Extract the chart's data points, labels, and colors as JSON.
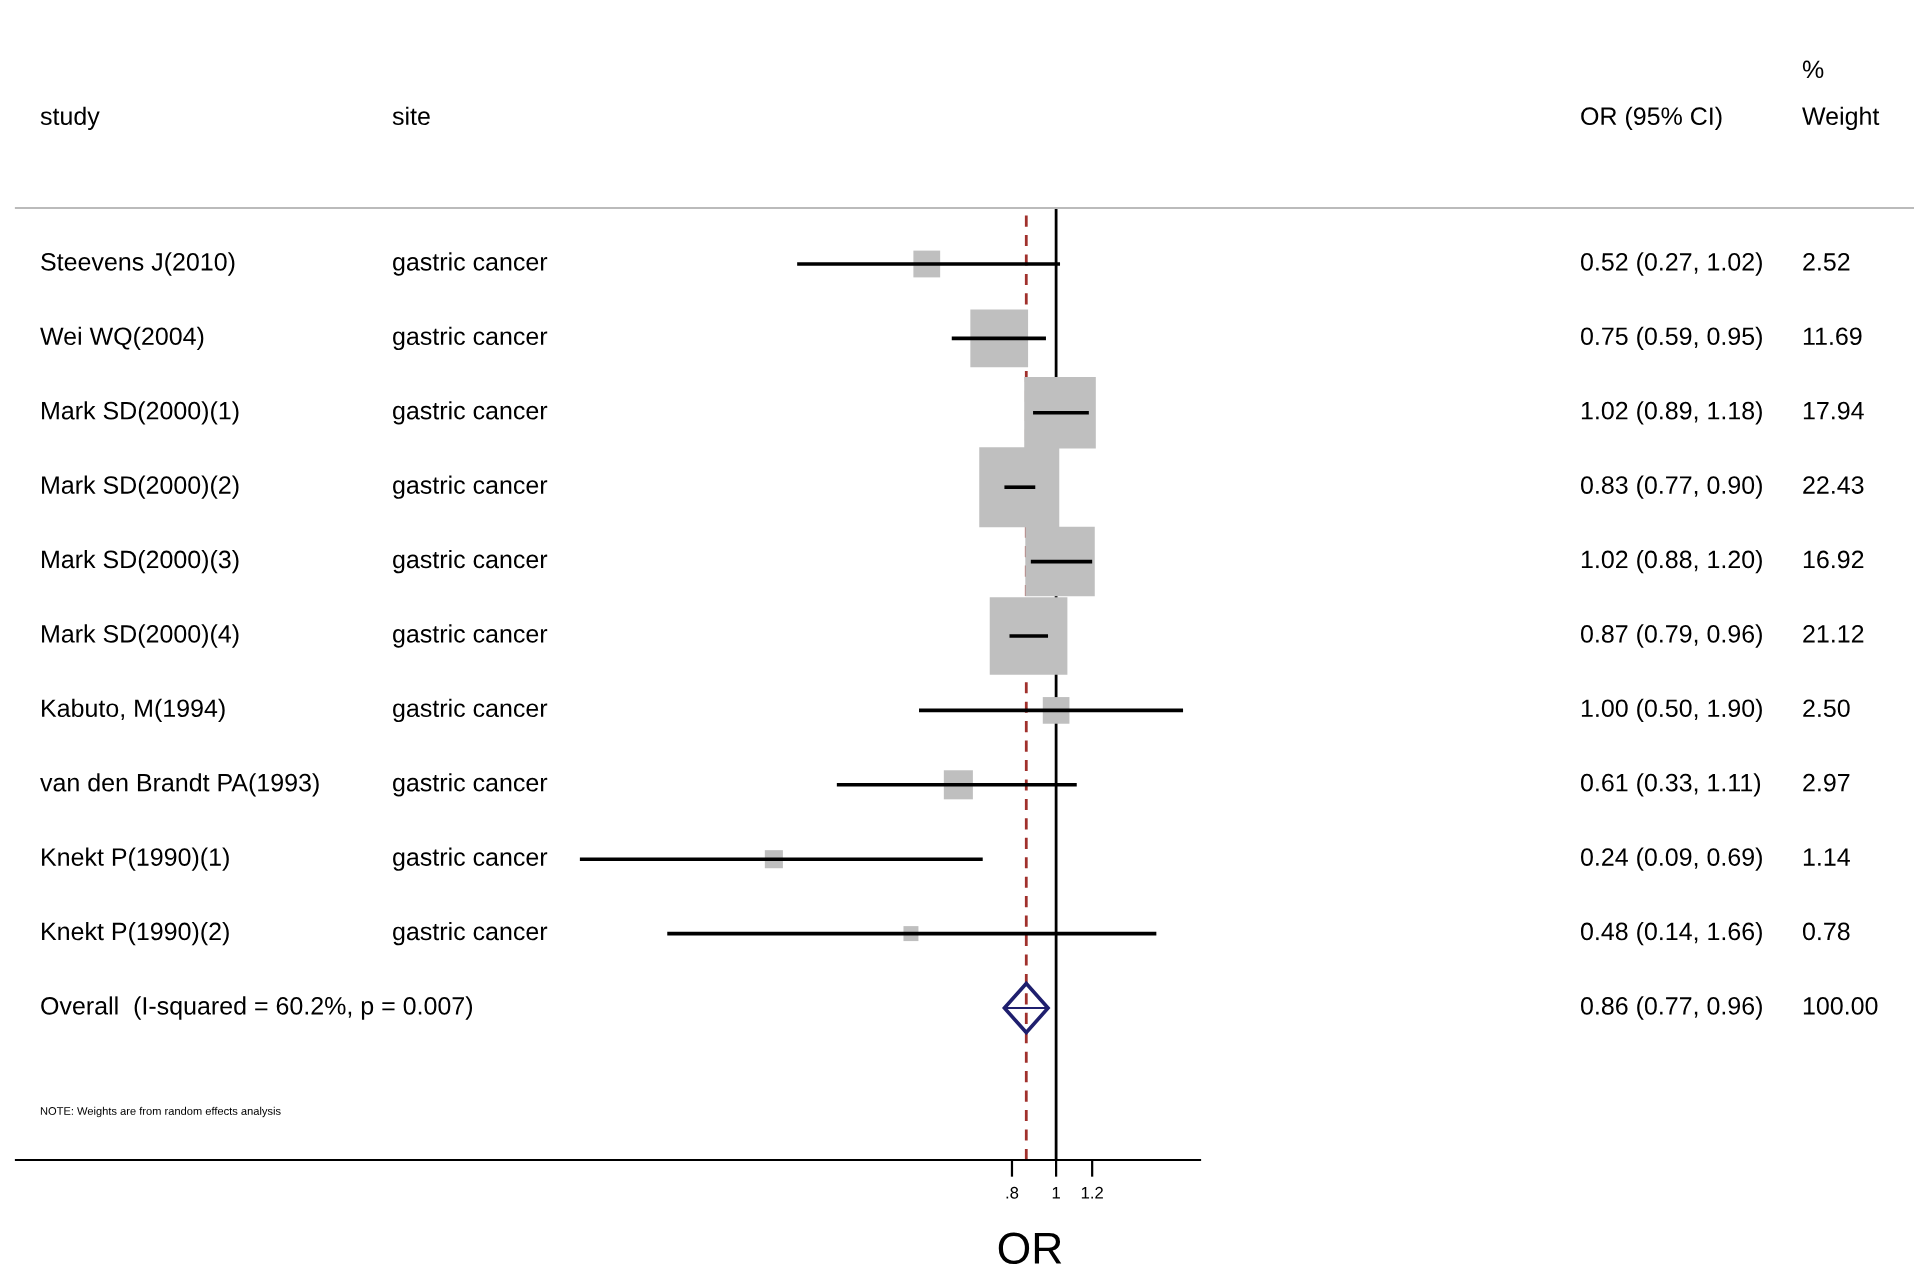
{
  "chart_data": {
    "type": "scatter",
    "orientation": "horizontal",
    "xlabel": "OR",
    "log": "x",
    "marker": "square",
    "categories": [
      "Steevens J(2010)",
      "Wei WQ(2004)",
      "Mark SD(2000)(1)",
      "Mark SD(2000)(2)",
      "Mark SD(2000)(3)",
      "Mark SD(2000)(4)",
      "Kabuto, M(1994)",
      "van den Brandt PA(1993)",
      "Knekt P(1990)(1)",
      "Knekt P(1990)(2)",
      "Overall  (I-squared = 60.2%, p = 0.007)"
    ],
    "series": [
      {
        "type": "bubble",
        "color": "#bfbfbf",
        "values": [
          0.52,
          0.75,
          1.02,
          0.83,
          1.02,
          0.87,
          1.0,
          0.61,
          0.24,
          0.48,
          null
        ],
        "errors": [
          [
            0.27,
            1.02
          ],
          [
            0.59,
            0.95
          ],
          [
            0.89,
            1.18
          ],
          [
            0.77,
            0.9
          ],
          [
            0.88,
            1.2
          ],
          [
            0.79,
            0.96
          ],
          [
            0.5,
            1.9
          ],
          [
            0.33,
            1.11
          ],
          [
            0.09,
            0.69
          ],
          [
            0.14,
            1.66
          ],
          null
        ],
        "sizes": [
          0.112,
          0.521,
          0.8,
          1,
          0.754,
          0.942,
          0.111,
          0.132,
          0.051,
          0.035,
          null
        ],
        "value_labels": [
          "0.52 (0.27, 1.02)",
          "0.75 (0.59, 0.95)",
          "1.02 (0.89, 1.18)",
          "0.83 (0.77, 0.90)",
          "1.02 (0.88, 1.20)",
          "0.87 (0.79, 0.96)",
          "1.00 (0.50, 1.90)",
          "0.61 (0.33, 1.11)",
          "0.24 (0.09, 0.69)",
          "0.48 (0.14, 1.66)",
          null
        ]
      },
      {
        "marker": "diamond",
        "color": "#1f1f6e",
        "values": [
          null,
          null,
          null,
          null,
          null,
          null,
          null,
          null,
          null,
          null,
          0.86
        ],
        "errors": [
          null,
          null,
          null,
          null,
          null,
          null,
          null,
          null,
          null,
          null,
          [
            0.77,
            0.96
          ]
        ]
      }
    ],
    "xlim": [
      0.0052,
      2.07
    ],
    "xticks": [
      {
        "value": 0.8,
        "label": ".8"
      },
      1,
      1.2
    ],
    "ref_lines": [
      {
        "axis": "x",
        "value": 1,
        "color": "#000000",
        "line_style": "solid"
      },
      {
        "axis": "x",
        "value": 0.86,
        "color": "#a0302c",
        "line_style": "dashed"
      }
    ],
    "annotations": [
      "study",
      "site",
      "OR (95% CI)",
      "%\nWeight",
      "NOTE: Weights are from random effects analysis",
      "gastric cancer",
      "gastric cancer",
      "gastric cancer",
      "gastric cancer",
      "gastric cancer",
      "gastric cancer",
      "gastric cancer",
      "gastric cancer",
      "gastric cancer",
      "gastric cancer",
      "2.52",
      "11.69",
      "17.94",
      "22.43",
      "16.92",
      "21.12",
      "2.50",
      "2.97",
      "1.14",
      "0.78",
      "100.00",
      "0.86 (0.77, 0.96)"
    ]
  }
}
